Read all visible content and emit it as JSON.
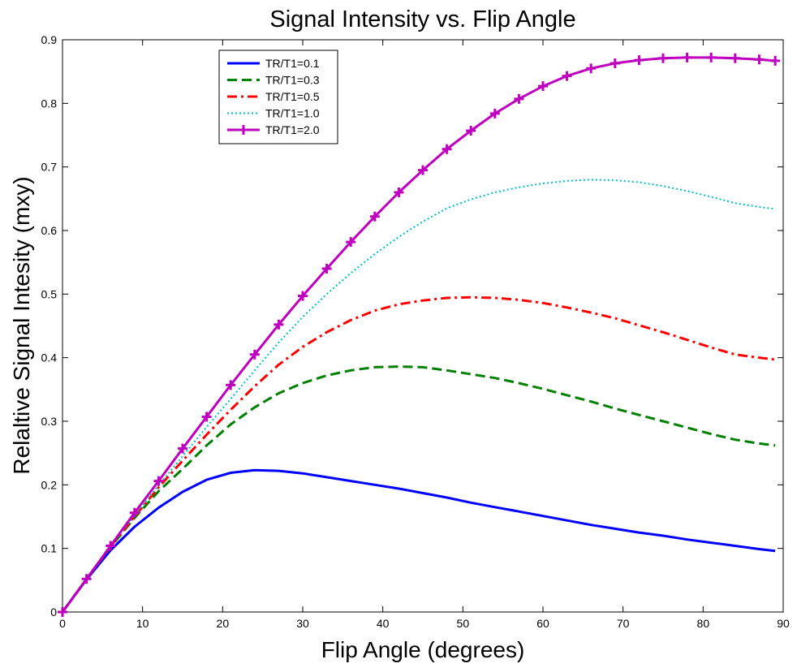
{
  "chart_data": {
    "type": "line",
    "title": "Signal Intensity vs. Flip Angle",
    "xlabel": "Flip Angle (degrees)",
    "ylabel": "Relaltive Signal Intesity (mxy)",
    "xlim": [
      0,
      90
    ],
    "ylim": [
      0,
      0.9
    ],
    "x_ticks": [
      "0",
      "10",
      "20",
      "30",
      "40",
      "50",
      "60",
      "70",
      "80",
      "90"
    ],
    "y_ticks": [
      "0",
      "0.1",
      "0.2",
      "0.3",
      "0.4",
      "0.5",
      "0.6",
      "0.7",
      "0.8",
      "0.9"
    ],
    "grid": false,
    "legend_position": "top-left",
    "x": [
      0,
      3,
      6,
      9,
      12,
      15,
      18,
      21,
      24,
      27,
      30,
      33,
      36,
      39,
      42,
      45,
      48,
      51,
      54,
      57,
      60,
      63,
      66,
      69,
      72,
      75,
      78,
      81,
      84,
      87,
      89
    ],
    "series": [
      {
        "name": "TR/T1=0.1",
        "color": "#0000ff",
        "style": "solid",
        "values": [
          0,
          0.051,
          0.097,
          0.134,
          0.164,
          0.189,
          0.208,
          0.219,
          0.223,
          0.222,
          0.218,
          0.212,
          0.206,
          0.2,
          0.194,
          0.187,
          0.18,
          0.172,
          0.165,
          0.158,
          0.151,
          0.144,
          0.137,
          0.131,
          0.125,
          0.12,
          0.114,
          0.109,
          0.104,
          0.099,
          0.096
        ]
      },
      {
        "name": "TR/T1=0.3",
        "color": "#008000",
        "style": "dashed",
        "values": [
          0,
          0.052,
          0.102,
          0.148,
          0.19,
          0.225,
          0.262,
          0.295,
          0.322,
          0.344,
          0.36,
          0.372,
          0.38,
          0.385,
          0.386,
          0.385,
          0.38,
          0.374,
          0.368,
          0.36,
          0.351,
          0.341,
          0.331,
          0.32,
          0.31,
          0.3,
          0.29,
          0.28,
          0.271,
          0.265,
          0.262
        ]
      },
      {
        "name": "TR/T1=0.5",
        "color": "#ff0000",
        "style": "dashdot",
        "values": [
          0,
          0.052,
          0.103,
          0.15,
          0.196,
          0.238,
          0.279,
          0.318,
          0.355,
          0.389,
          0.417,
          0.44,
          0.459,
          0.474,
          0.484,
          0.49,
          0.494,
          0.495,
          0.494,
          0.491,
          0.486,
          0.479,
          0.471,
          0.462,
          0.451,
          0.44,
          0.428,
          0.416,
          0.405,
          0.4,
          0.397
        ]
      },
      {
        "name": "TR/T1=1.0",
        "color": "#00bfbf",
        "style": "dotted",
        "values": [
          0,
          0.052,
          0.103,
          0.152,
          0.199,
          0.245,
          0.291,
          0.335,
          0.38,
          0.424,
          0.464,
          0.5,
          0.533,
          0.563,
          0.59,
          0.614,
          0.635,
          0.649,
          0.66,
          0.668,
          0.674,
          0.678,
          0.68,
          0.679,
          0.676,
          0.67,
          0.662,
          0.653,
          0.643,
          0.637,
          0.634
        ]
      },
      {
        "name": "TR/T1=2.0",
        "color": "#bf00bf",
        "style": "solid-plus",
        "values": [
          0,
          0.052,
          0.104,
          0.156,
          0.206,
          0.257,
          0.307,
          0.357,
          0.405,
          0.452,
          0.497,
          0.54,
          0.582,
          0.622,
          0.66,
          0.695,
          0.728,
          0.757,
          0.784,
          0.807,
          0.827,
          0.843,
          0.855,
          0.863,
          0.868,
          0.871,
          0.872,
          0.872,
          0.871,
          0.869,
          0.867
        ]
      }
    ]
  }
}
